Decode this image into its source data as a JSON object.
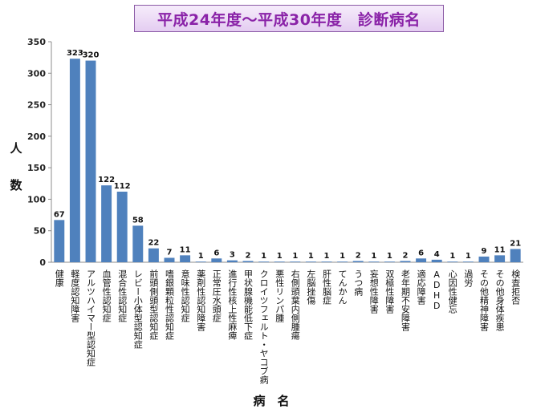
{
  "title": "平成24年度～平成30年度　診断病名",
  "chart_data": {
    "type": "bar",
    "ylabel": "人数",
    "xlabel": "病　名",
    "ylim": [
      0,
      350
    ],
    "yticks": [
      0,
      50,
      100,
      150,
      200,
      250,
      300,
      350
    ],
    "grid": false,
    "bar_color": "#4f81bd",
    "categories": [
      "健康",
      "軽度認知障害",
      "アルツハイマー型認知症",
      "血管性認知症",
      "混合性認知症",
      "レビー小体型認知症",
      "前頭側頭型認知症",
      "嗜銀顆粒性認知症",
      "意味性認知症",
      "薬剤性認知障害",
      "正常圧水頭症",
      "進行性核上性麻痺",
      "甲状腺機能低下症",
      "クロイツフェルト・ヤコブ病",
      "悪性リンパ腫",
      "右側頭葉内側腫瘍",
      "左脳挫傷",
      "肝性脳症",
      "てんかん",
      "うつ病",
      "妄想性障害",
      "双極性障害",
      "老年期不安障害",
      "適応障害",
      "ADHD",
      "心因性健忘",
      "過労",
      "その他精神障害",
      "その他身体疾患",
      "検査拒否"
    ],
    "values": [
      67,
      323,
      320,
      122,
      112,
      58,
      22,
      7,
      11,
      1,
      6,
      3,
      2,
      1,
      1,
      1,
      1,
      1,
      1,
      2,
      1,
      1,
      2,
      6,
      4,
      1,
      1,
      9,
      11,
      21
    ]
  }
}
